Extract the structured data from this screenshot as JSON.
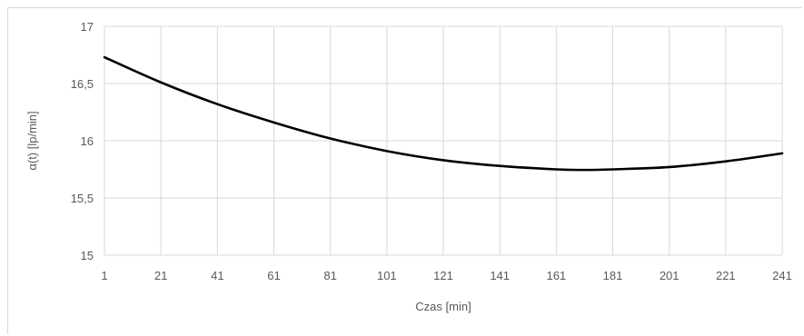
{
  "chart_data": {
    "type": "line",
    "title": "",
    "xlabel": "Czas [min]",
    "ylabel": "α(t) [lp/min]",
    "xlim": [
      1,
      241
    ],
    "ylim": [
      15,
      17
    ],
    "x_ticks": [
      "1",
      "21",
      "41",
      "61",
      "81",
      "101",
      "121",
      "141",
      "161",
      "181",
      "201",
      "221",
      "241"
    ],
    "y_ticks": [
      "15",
      "15,5",
      "16",
      "16,5",
      "17"
    ],
    "grid": true,
    "legend": "none",
    "series": [
      {
        "color": "#000000",
        "x": [
          1,
          21,
          41,
          61,
          81,
          101,
          121,
          141,
          161,
          171,
          181,
          201,
          221,
          241
        ],
        "y": [
          16.73,
          16.51,
          16.32,
          16.16,
          16.02,
          15.91,
          15.83,
          15.78,
          15.75,
          15.745,
          15.75,
          15.77,
          15.82,
          15.89
        ]
      }
    ]
  }
}
